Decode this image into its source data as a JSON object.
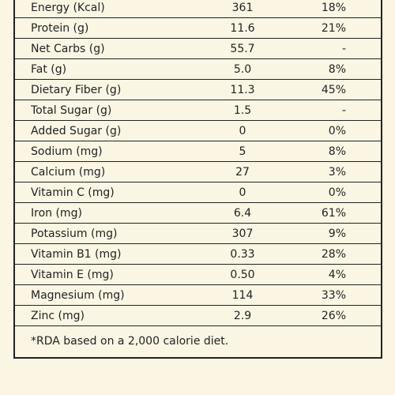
{
  "table": {
    "rows": [
      [
        "Energy (Kcal)",
        "361",
        "18%"
      ],
      [
        "Protein (g)",
        "11.6",
        "21%"
      ],
      [
        "Net Carbs (g)",
        "55.7",
        "-"
      ],
      [
        "Fat (g)",
        "5.0",
        "8%"
      ],
      [
        "Dietary Fiber (g)",
        "11.3",
        "45%"
      ],
      [
        "Total Sugar (g)",
        "1.5",
        "-"
      ],
      [
        "Added Sugar (g)",
        "0",
        "0%"
      ],
      [
        "Sodium (mg)",
        "5",
        "8%"
      ],
      [
        "Calcium (mg)",
        "27",
        "3%"
      ],
      [
        "Vitamin C (mg)",
        "0",
        "0%"
      ],
      [
        "Iron (mg)",
        "6.4",
        "61%"
      ],
      [
        "Potassium (mg)",
        "307",
        "9%"
      ],
      [
        "Vitamin B1 (mg)",
        "0.33",
        "28%"
      ],
      [
        "Vitamin E (mg)",
        "0.50",
        "4%"
      ],
      [
        "Magnesium (mg)",
        "114",
        "33%"
      ],
      [
        "Zinc (mg)",
        "2.9",
        "26%"
      ]
    ],
    "footnote": "*RDA based on a 2,000 calorie diet."
  }
}
